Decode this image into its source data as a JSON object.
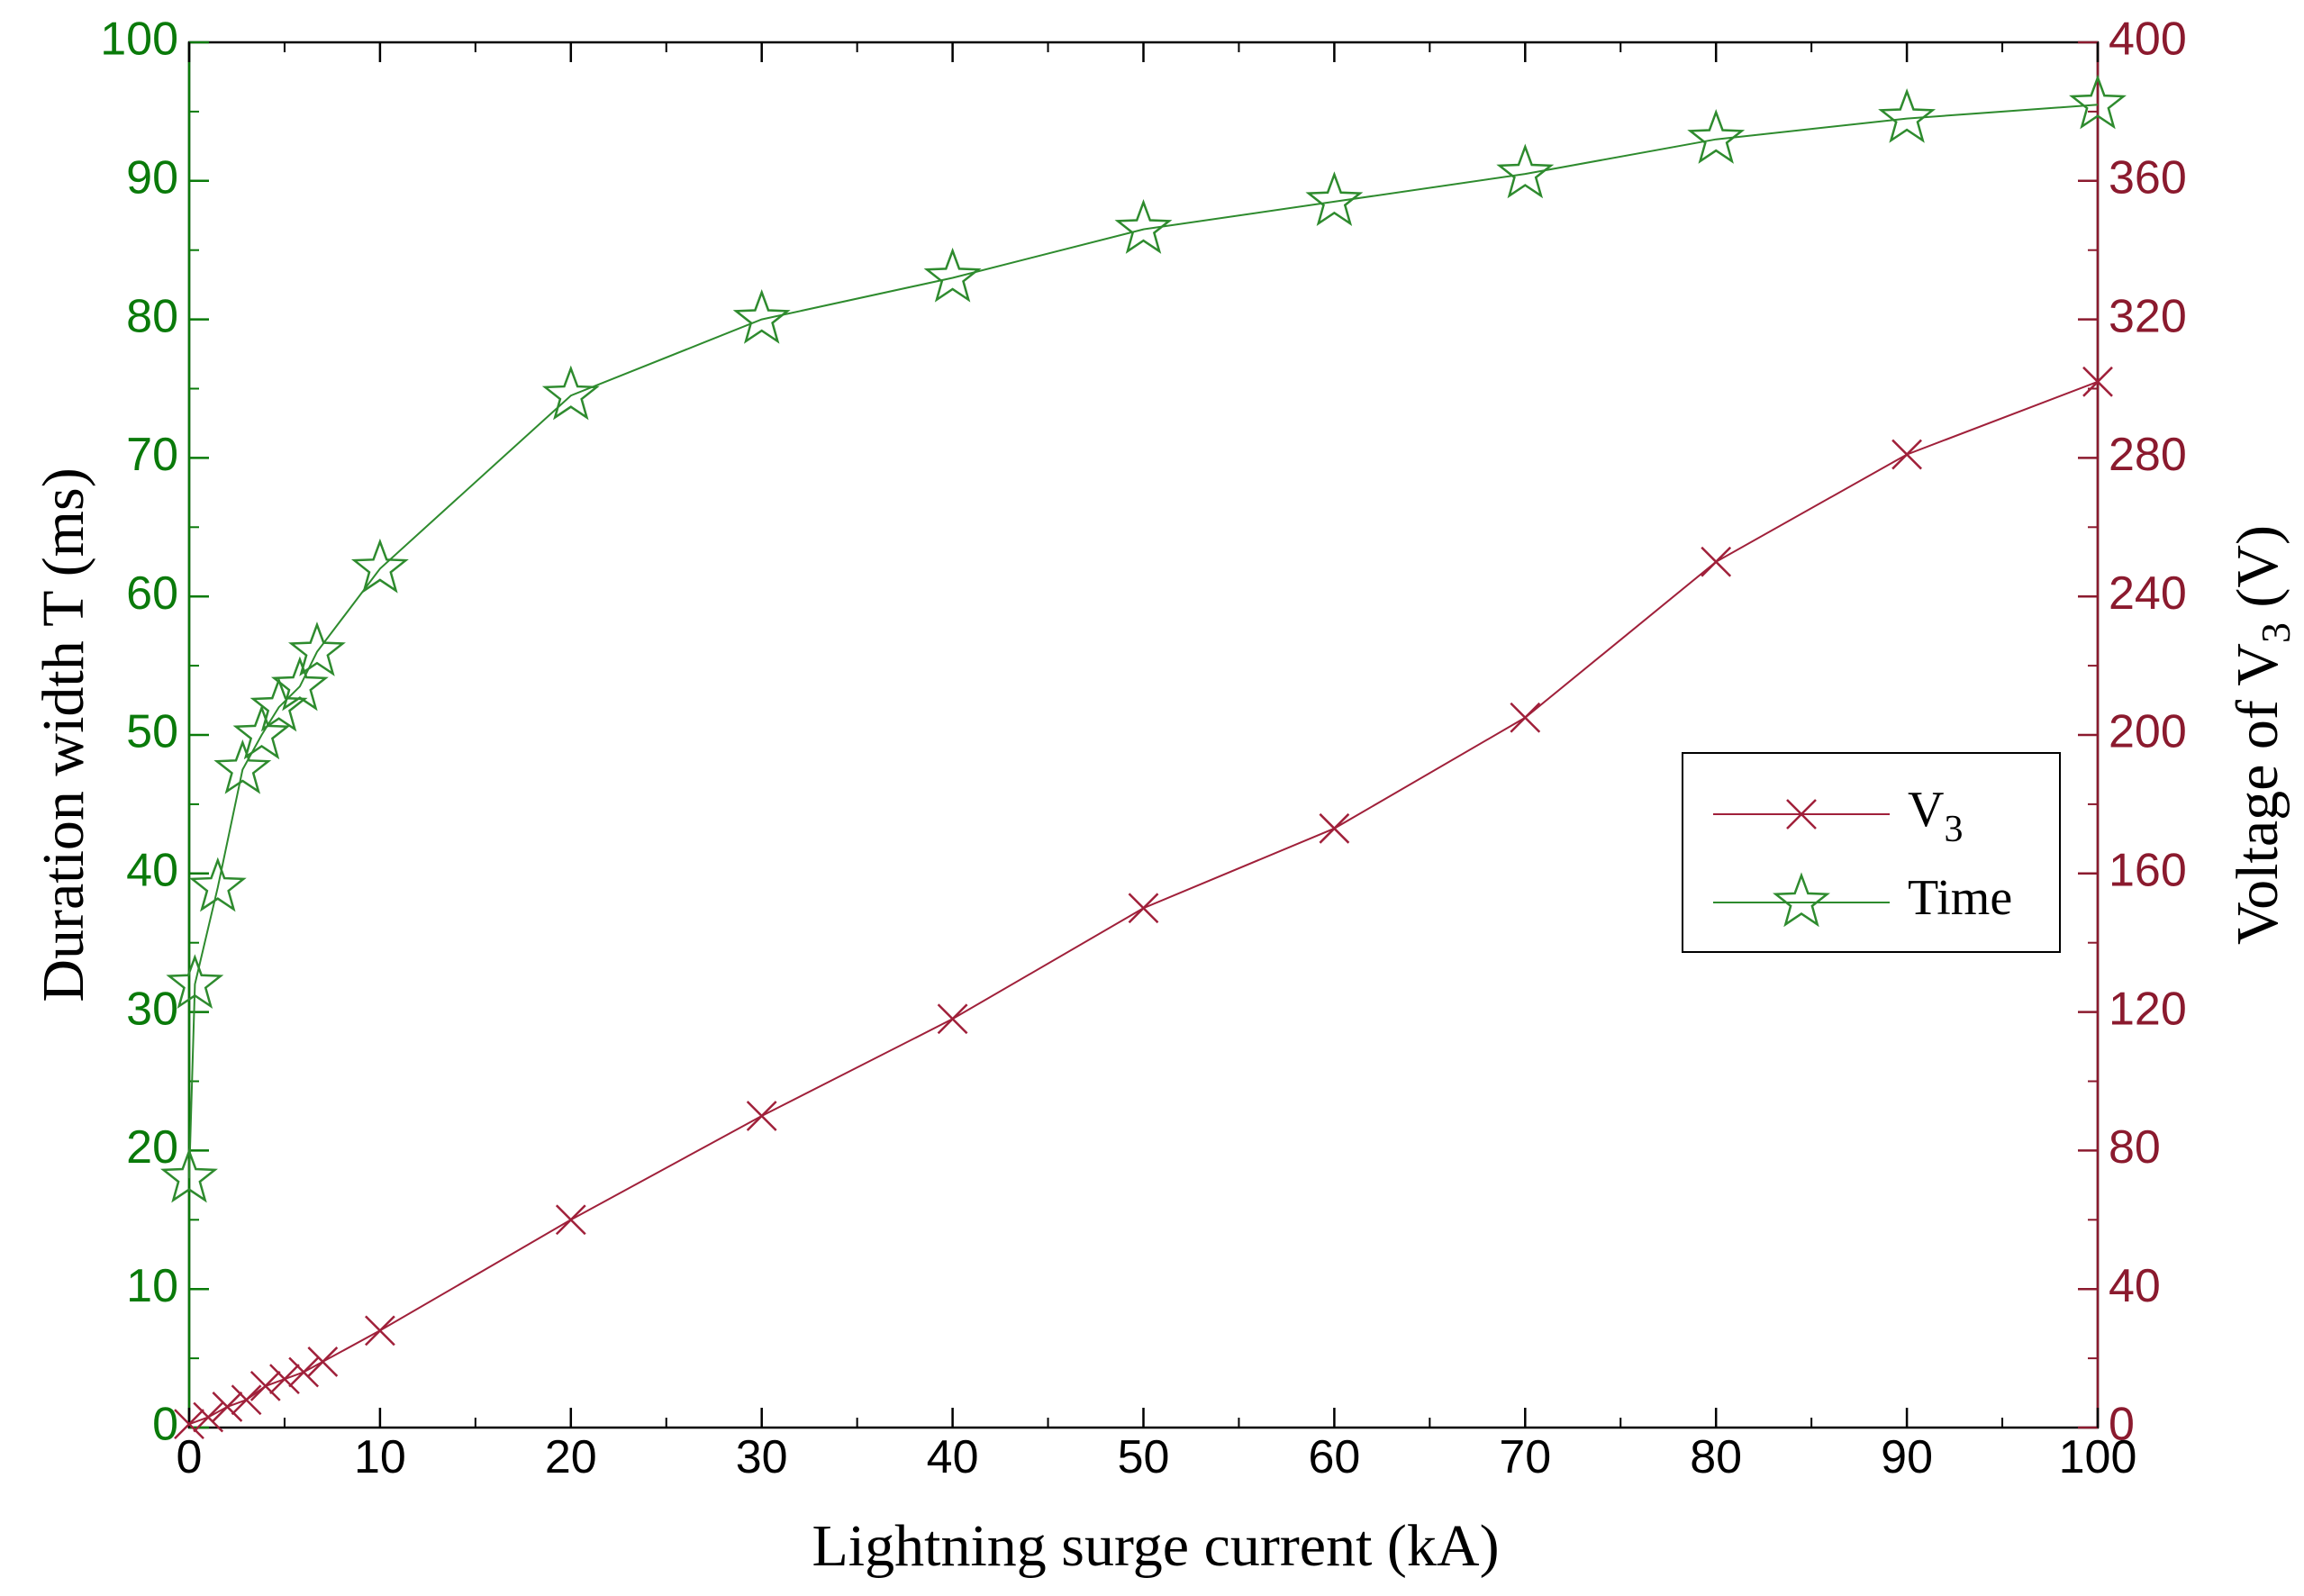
{
  "chart_data": {
    "type": "line",
    "xlabel": "Lightning surge current (kA)",
    "ylabel_left": "Duration width T (ms)",
    "ylabel_right": {
      "prefix": "Voltage of V",
      "sub": "3",
      "suffix": " (V)"
    },
    "xlim": [
      0,
      100
    ],
    "ylim_left": [
      0,
      100
    ],
    "ylim_right": [
      0,
      400
    ],
    "x_ticks": [
      0,
      10,
      20,
      30,
      40,
      50,
      60,
      70,
      80,
      90,
      100
    ],
    "y_left_ticks": [
      0,
      10,
      20,
      30,
      40,
      50,
      60,
      70,
      80,
      90,
      100
    ],
    "y_right_ticks": [
      0,
      40,
      80,
      120,
      160,
      200,
      240,
      280,
      320,
      360,
      400
    ],
    "grid": false,
    "legend_position": "center-right",
    "series": [
      {
        "name": "V",
        "name_sub": "3",
        "axis": "right",
        "marker": "x",
        "color": "#a0203a",
        "x": [
          0,
          1,
          2,
          3,
          4,
          5,
          6,
          7,
          10,
          20,
          30,
          40,
          50,
          60,
          70,
          80,
          90,
          100
        ],
        "values": [
          1,
          3,
          6,
          8,
          12,
          14,
          16,
          19,
          28,
          60,
          90,
          118,
          150,
          173,
          205,
          250,
          281,
          302
        ]
      },
      {
        "name": "Time",
        "axis": "left",
        "marker": "star",
        "color": "#2e8b2e",
        "x": [
          0,
          0.3,
          1.5,
          2.8,
          3.8,
          4.7,
          5.8,
          6.7,
          10,
          20,
          30,
          40,
          50,
          60,
          70,
          80,
          90,
          100
        ],
        "values": [
          18,
          32,
          39,
          47.5,
          50,
          52,
          53.5,
          56,
          62,
          74.5,
          80,
          83,
          86.5,
          88.5,
          90.5,
          93,
          94.5,
          95.5
        ]
      }
    ],
    "colors": {
      "left_axis": "#0a7a0a",
      "right_axis": "#8b1a2e",
      "v3_line": "#a0203a",
      "time_line": "#2e8b2e"
    }
  }
}
